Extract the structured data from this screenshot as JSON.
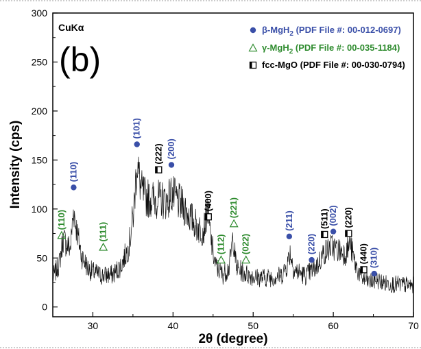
{
  "chart_data": {
    "type": "line",
    "panel_label": "(b)",
    "radiation": "CuKα",
    "xlabel": "2θ (degree)",
    "ylabel": "Intensity (cps)",
    "xlim": [
      25,
      70
    ],
    "ylim": [
      -10,
      300
    ],
    "x_ticks": [
      30,
      40,
      50,
      60,
      70
    ],
    "y_ticks": [
      0,
      50,
      100,
      150,
      200,
      250,
      300
    ],
    "grid": false,
    "colors": {
      "beta": "#3a4fa8",
      "gamma": "#2e8b2e",
      "mgo": "#000000",
      "trace": "#111111"
    },
    "profile": [
      [
        25,
        30
      ],
      [
        25.8,
        44
      ],
      [
        26.3,
        70
      ],
      [
        26.7,
        64
      ],
      [
        27.2,
        60
      ],
      [
        27.6,
        100
      ],
      [
        28.0,
        78
      ],
      [
        28.6,
        52
      ],
      [
        29.5,
        38
      ],
      [
        31,
        32
      ],
      [
        32.5,
        33
      ],
      [
        33.5,
        42
      ],
      [
        34.5,
        62
      ],
      [
        35.1,
        98
      ],
      [
        35.5,
        148
      ],
      [
        36.0,
        120
      ],
      [
        36.6,
        112
      ],
      [
        37.5,
        110
      ],
      [
        38.5,
        110
      ],
      [
        39.2,
        108
      ],
      [
        39.8,
        116
      ],
      [
        40.6,
        108
      ],
      [
        41.5,
        100
      ],
      [
        42.5,
        88
      ],
      [
        43.2,
        80
      ],
      [
        43.8,
        78
      ],
      [
        44.3,
        100
      ],
      [
        44.7,
        70
      ],
      [
        45.3,
        42
      ],
      [
        46.2,
        33
      ],
      [
        47.0,
        40
      ],
      [
        47.5,
        72
      ],
      [
        47.9,
        40
      ],
      [
        49.0,
        34
      ],
      [
        50.5,
        30
      ],
      [
        52,
        30
      ],
      [
        53.5,
        32
      ],
      [
        54.2,
        42
      ],
      [
        54.6,
        56
      ],
      [
        55.1,
        38
      ],
      [
        56.5,
        32
      ],
      [
        57.8,
        40
      ],
      [
        58.8,
        55
      ],
      [
        59.8,
        62
      ],
      [
        60.6,
        58
      ],
      [
        61.5,
        55
      ],
      [
        62.1,
        64
      ],
      [
        62.8,
        42
      ],
      [
        63.5,
        30
      ],
      [
        64.5,
        25
      ],
      [
        65.3,
        28
      ],
      [
        66.5,
        24
      ],
      [
        68,
        23
      ],
      [
        70,
        22
      ]
    ],
    "series": [
      {
        "name": "β-MgH2 (PDF File #: 00-012-0697)",
        "legend_prefix": "β-MgH",
        "legend_sub": "2",
        "legend_suffix": "(PDF File #: 00-012-0697)",
        "symbol": "circle",
        "color": "#3a4fa8",
        "peaks": [
          {
            "x": 27.6,
            "y": 122,
            "hkl": "(110)"
          },
          {
            "x": 35.5,
            "y": 166,
            "hkl": "(101)"
          },
          {
            "x": 39.8,
            "y": 145,
            "hkl": "(200)"
          },
          {
            "x": 54.5,
            "y": 72,
            "hkl": "(211)"
          },
          {
            "x": 57.3,
            "y": 48,
            "hkl": "(220)"
          },
          {
            "x": 60.0,
            "y": 77,
            "hkl": "(002)"
          },
          {
            "x": 65.1,
            "y": 34,
            "hkl": "(310)"
          }
        ]
      },
      {
        "name": "γ-MgH2 (PDF File #: 00-035-1184)",
        "legend_prefix": "γ-MgH",
        "legend_sub": "2",
        "legend_suffix": "(PDF File #: 00-035-1184)",
        "symbol": "triangle",
        "color": "#2e8b2e",
        "peaks": [
          {
            "x": 26.1,
            "y": 73,
            "hkl": "(110)"
          },
          {
            "x": 31.3,
            "y": 61,
            "hkl": "(111)"
          },
          {
            "x": 46.0,
            "y": 48,
            "hkl": "(112)"
          },
          {
            "x": 47.6,
            "y": 85,
            "hkl": "(221)"
          },
          {
            "x": 49.1,
            "y": 48,
            "hkl": "(022)"
          }
        ]
      },
      {
        "name": "fcc-MgO (PDF File #: 00-030-0794)",
        "legend_prefix": "fcc-MgO",
        "legend_sub": "",
        "legend_suffix": "(PDF File #: 00-030-0794)",
        "symbol": "square",
        "color": "#000000",
        "peaks": [
          {
            "x": 38.2,
            "y": 140,
            "hkl": "(222)"
          },
          {
            "x": 44.4,
            "y": 92,
            "hkl": "(400)"
          },
          {
            "x": 58.9,
            "y": 74,
            "hkl": "(511)"
          },
          {
            "x": 61.9,
            "y": 75,
            "hkl": "(220)"
          },
          {
            "x": 63.8,
            "y": 38,
            "hkl": "(440)"
          }
        ]
      }
    ]
  }
}
